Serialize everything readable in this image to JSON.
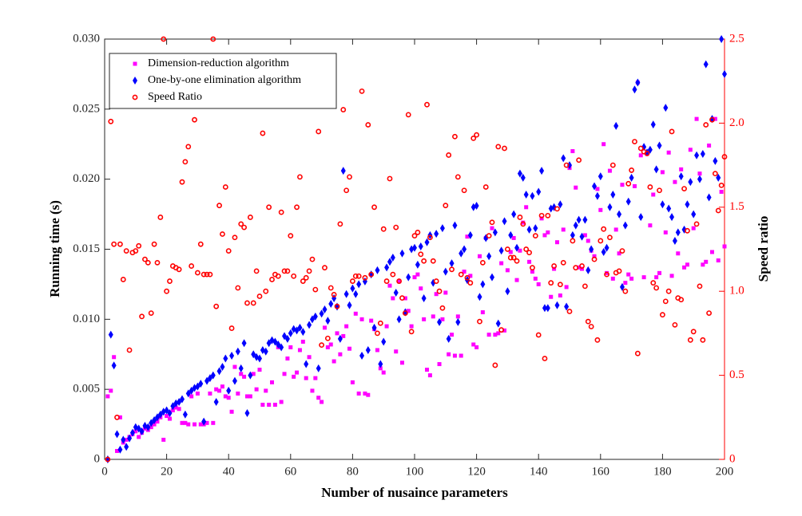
{
  "chart_data": {
    "type": "scatter",
    "xlabel": "Number of nusaince parameters",
    "ylabel": "Running time (s)",
    "y2label": "Speed ratio",
    "xlim": [
      0,
      200
    ],
    "xticks": [
      0,
      20,
      40,
      60,
      80,
      100,
      120,
      140,
      160,
      180,
      200
    ],
    "ylim": [
      0,
      0.03
    ],
    "yticks": [
      0,
      0.005,
      {
        "value": 0.01,
        "label": "0.010"
      },
      0.015,
      {
        "value": 0.02,
        "label": "0.020"
      },
      0.025,
      {
        "value": 0.03,
        "label": "0.030"
      }
    ],
    "y2lim": [
      0,
      2.5
    ],
    "y2ticks": [
      0,
      0.5,
      {
        "value": 1,
        "label": "1.0"
      },
      1.5,
      {
        "value": 2,
        "label": "2.0"
      },
      2.5
    ],
    "y2color": "#ff0000",
    "legend": "upper-left",
    "x": [
      1,
      2,
      3,
      4,
      5,
      6,
      7,
      8,
      9,
      10,
      11,
      12,
      13,
      14,
      15,
      16,
      17,
      18,
      19,
      20,
      21,
      22,
      23,
      24,
      25,
      26,
      27,
      28,
      29,
      30,
      31,
      32,
      33,
      34,
      35,
      36,
      37,
      38,
      39,
      40,
      41,
      42,
      43,
      44,
      45,
      46,
      47,
      48,
      49,
      50,
      51,
      52,
      53,
      54,
      55,
      56,
      57,
      58,
      59,
      60,
      61,
      62,
      63,
      64,
      65,
      66,
      67,
      68,
      69,
      70,
      71,
      72,
      73,
      74,
      75,
      76,
      77,
      78,
      79,
      80,
      81,
      82,
      83,
      84,
      85,
      86,
      87,
      88,
      89,
      90,
      91,
      92,
      93,
      94,
      95,
      96,
      97,
      98,
      99,
      100,
      101,
      102,
      103,
      104,
      105,
      106,
      107,
      108,
      109,
      110,
      111,
      112,
      113,
      114,
      115,
      116,
      117,
      118,
      119,
      120,
      121,
      122,
      123,
      124,
      125,
      126,
      127,
      128,
      129,
      130,
      131,
      132,
      133,
      134,
      135,
      136,
      137,
      138,
      139,
      140,
      141,
      142,
      143,
      144,
      145,
      146,
      147,
      148,
      149,
      150,
      151,
      152,
      153,
      154,
      155,
      156,
      157,
      158,
      159,
      160,
      161,
      162,
      163,
      164,
      165,
      166,
      167,
      168,
      169,
      170,
      171,
      172,
      173,
      174,
      175,
      176,
      177,
      178,
      179,
      180,
      181,
      182,
      183,
      184,
      185,
      186,
      187,
      188,
      189,
      190,
      191,
      192,
      193,
      194,
      195,
      196,
      197,
      198,
      199,
      200
    ],
    "series": [
      {
        "name": "Dimension-reduction algorithm",
        "color": "#ff00ff",
        "marker": "square",
        "values": [
          0.0045,
          0.0049,
          0.0073,
          0.0006,
          0.003,
          0.0012,
          0.0014,
          0.0016,
          0.0018,
          0.002,
          0.0016,
          0.0019,
          0.0022,
          0.0021,
          0.0023,
          0.0025,
          0.0027,
          0.003,
          0.0014,
          0.0031,
          0.0029,
          0.0035,
          0.0037,
          0.0036,
          0.0026,
          0.0026,
          0.0025,
          0.0045,
          0.0025,
          0.0047,
          0.0025,
          0.0025,
          0.0026,
          0.0047,
          0.0026,
          0.005,
          0.0049,
          0.0052,
          0.0045,
          0.0044,
          0.0034,
          0.0066,
          0.0047,
          0.0061,
          0.0059,
          0.0045,
          0.0045,
          0.0061,
          0.005,
          0.0064,
          0.0039,
          0.0049,
          0.0039,
          0.0055,
          0.0039,
          0.008,
          0.0041,
          0.0061,
          0.0072,
          0.008,
          0.0059,
          0.0062,
          0.0078,
          0.0084,
          0.0058,
          0.0073,
          0.0049,
          0.0058,
          0.0044,
          0.0041,
          0.0094,
          0.008,
          0.0082,
          0.007,
          0.009,
          0.0075,
          0.0088,
          0.0095,
          0.0079,
          0.0055,
          0.0104,
          0.0047,
          0.01,
          0.0047,
          0.0046,
          0.0099,
          0.0093,
          0.0078,
          0.0065,
          0.0062,
          0.0095,
          0.0124,
          0.0115,
          0.0077,
          0.0127,
          0.0069,
          0.0115,
          0.0106,
          0.0095,
          0.013,
          0.0132,
          0.0122,
          0.01,
          0.0064,
          0.006,
          0.0102,
          0.0118,
          0.0068,
          0.01,
          0.0119,
          0.0075,
          0.0089,
          0.0074,
          0.0102,
          0.0074,
          0.0134,
          0.0159,
          0.0131,
          0.0082,
          0.008,
          0.0145,
          0.0105,
          0.0158,
          0.0089,
          0.0165,
          0.0089,
          0.009,
          0.014,
          0.0092,
          0.0135,
          0.0148,
          0.0158,
          0.0128,
          0.0149,
          0.0169,
          0.018,
          0.0141,
          0.0134,
          0.0129,
          0.0125,
          0.0172,
          0.016,
          0.0162,
          0.0116,
          0.0136,
          0.0155,
          0.0117,
          0.0164,
          0.0123,
          0.0208,
          0.022,
          0.0194,
          0.0137,
          0.0136,
          0.016,
          0.0156,
          0.0149,
          0.0145,
          0.0193,
          0.0178,
          0.0225,
          0.0133,
          0.0206,
          0.0129,
          0.0164,
          0.0147,
          0.0196,
          0.0126,
          0.0132,
          0.0129,
          0.0195,
          0.0269,
          0.0217,
          0.013,
          0.0218,
          0.0167,
          0.0189,
          0.013,
          0.0133,
          0.0205,
          0.0162,
          0.0219,
          0.0131,
          0.0198,
          0.0147,
          0.0207,
          0.0137,
          0.0139,
          0.0221,
          0.0165,
          0.0243,
          0.0204,
          0.0139,
          0.0141,
          0.0224,
          0.0148,
          0.0243,
          0.0142,
          0.0191,
          0.0152
        ]
      },
      {
        "name": "One-by-one elimination algorithm",
        "color": "#0000ff",
        "marker": "diamond",
        "values": [
          0,
          0.0089,
          0.0067,
          0.0018,
          0.0007,
          0.0014,
          0.0009,
          0.0015,
          0.0019,
          0.0023,
          0.0022,
          0.002,
          0.0024,
          0.0023,
          0.0026,
          0.0028,
          0.003,
          0.0032,
          0.0034,
          0.0035,
          0.0033,
          0.0038,
          0.004,
          0.0041,
          0.0043,
          0.0032,
          0.0047,
          0.0049,
          0.0051,
          0.0052,
          0.0054,
          0.0027,
          0.0056,
          0.0058,
          0.006,
          0.0041,
          0.0063,
          0.0066,
          0.0072,
          0.0049,
          0.0074,
          0.0056,
          0.0077,
          0.0065,
          0.0083,
          0.0033,
          0.006,
          0.0075,
          0.0073,
          0.0072,
          0.0078,
          0.0077,
          0.0083,
          0.0085,
          0.0084,
          0.0082,
          0.008,
          0.0088,
          0.0086,
          0.009,
          0.0093,
          0.0092,
          0.0094,
          0.0091,
          0.0068,
          0.0096,
          0.01,
          0.0102,
          0.0065,
          0.0104,
          0.0107,
          0.0099,
          0.0111,
          0.0115,
          0.0109,
          0.0086,
          0.0206,
          0.0118,
          0.011,
          0.0122,
          0.0118,
          0.0125,
          0.0074,
          0.0127,
          0.0078,
          0.0132,
          0.0094,
          0.0135,
          0.0068,
          0.0084,
          0.0137,
          0.0141,
          0.0144,
          0.0119,
          0.01,
          0.0147,
          0.0105,
          0.013,
          0.015,
          0.0151,
          0.0139,
          0.0152,
          0.0115,
          0.0155,
          0.016,
          0.0126,
          0.0161,
          0.0098,
          0.0165,
          0.0134,
          0.0086,
          0.014,
          0.0167,
          0.0098,
          0.0147,
          0.015,
          0.0128,
          0.016,
          0.018,
          0.0181,
          0.0116,
          0.0125,
          0.0158,
          0.0145,
          0.013,
          0.0162,
          0.0097,
          0.0149,
          0.017,
          0.012,
          0.016,
          0.0175,
          0.0151,
          0.0204,
          0.0201,
          0.0189,
          0.0164,
          0.0188,
          0.0165,
          0.0191,
          0.0206,
          0.0108,
          0.0108,
          0.0179,
          0.018,
          0.011,
          0.0182,
          0.0215,
          0.0109,
          0.021,
          0.016,
          0.0167,
          0.0171,
          0.0159,
          0.0171,
          0.0135,
          0.015,
          0.0195,
          0.0188,
          0.0202,
          0.0148,
          0.0151,
          0.018,
          0.0189,
          0.0238,
          0.0175,
          0.0123,
          0.0167,
          0.0184,
          0.0201,
          0.0264,
          0.0269,
          0.0173,
          0.0223,
          0.0219,
          0.0221,
          0.0239,
          0.0207,
          0.0224,
          0.0182,
          0.0251,
          0.0179,
          0.0173,
          0.0156,
          0.0162,
          0.0202,
          0.0164,
          0.0182,
          0.0198,
          0.0175,
          0.0217,
          0.02,
          0.0218,
          0.0282,
          0.0187,
          0.0243,
          0.0213,
          0.0201,
          0.03,
          0.0275
        ]
      },
      {
        "name": "Speed Ratio",
        "color": "#ff0000",
        "marker": "circle",
        "axis": "y2",
        "values": [
          0,
          2.01,
          1.28,
          0.25,
          1.28,
          1.07,
          1.24,
          0.65,
          1.23,
          1.24,
          1.27,
          0.85,
          1.19,
          1.17,
          0.87,
          1.28,
          1.17,
          1.44,
          2.5,
          1,
          1.06,
          1.15,
          1.14,
          1.13,
          1.65,
          1.77,
          1.86,
          1.15,
          2.02,
          1.11,
          1.28,
          1.1,
          1.1,
          1.1,
          2.5,
          0.91,
          1.51,
          1.34,
          1.62,
          1.24,
          0.78,
          1.32,
          1.02,
          1.4,
          1.38,
          0.93,
          1.44,
          0.93,
          1.12,
          0.97,
          1.94,
          1,
          1.5,
          1.07,
          1.1,
          1.09,
          1.47,
          1.12,
          1.12,
          1.33,
          1.09,
          1.5,
          1.68,
          1.06,
          1.08,
          1.12,
          1.19,
          1.01,
          1.95,
          0.68,
          1.14,
          0.72,
          1.02,
          0.98,
          0.91,
          1.4,
          2.08,
          1.6,
          1.68,
          1.06,
          1.09,
          1.09,
          2.19,
          1.08,
          1.99,
          1.1,
          1.5,
          0.75,
          0.81,
          1.37,
          1.06,
          1.67,
          1.1,
          1.38,
          1.06,
          0.96,
          0.87,
          2.05,
          0.76,
          1.33,
          1.35,
          1.22,
          1.18,
          2.11,
          1.32,
          1.18,
          1.06,
          1,
          0.9,
          1.51,
          1.81,
          1.13,
          1.92,
          1.68,
          1.1,
          1.6,
          1.08,
          1.05,
          1.91,
          1.93,
          0.82,
          1.17,
          1.62,
          1.33,
          1.41,
          0.56,
          1.86,
          0.77,
          1.85,
          1.25,
          1.2,
          1.2,
          1.18,
          1.44,
          1.4,
          1.25,
          1.23,
          1.14,
          1.33,
          0.74,
          1.45,
          0.6,
          1.45,
          1.05,
          1.15,
          1.49,
          1.04,
          1.17,
          1.75,
          0.88,
          1.3,
          1.14,
          1.78,
          1.15,
          1.03,
          0.82,
          0.79,
          1.19,
          0.71,
          1.3,
          1.37,
          1.1,
          1.32,
          1.75,
          1.11,
          1.12,
          1.24,
          1,
          1.64,
          1.72,
          1.89,
          0.63,
          1.85,
          1.83,
          1.82,
          1.62,
          1.05,
          1.02,
          1.6,
          0.86,
          0.94,
          1,
          1.95,
          0.8,
          0.96,
          0.95,
          1.61,
          1.36,
          0.71,
          0.76,
          1.4,
          1.03,
          0.71,
          1.99,
          0.87,
          2.02,
          1.7,
          1.48,
          1.63,
          1.8
        ]
      }
    ]
  }
}
